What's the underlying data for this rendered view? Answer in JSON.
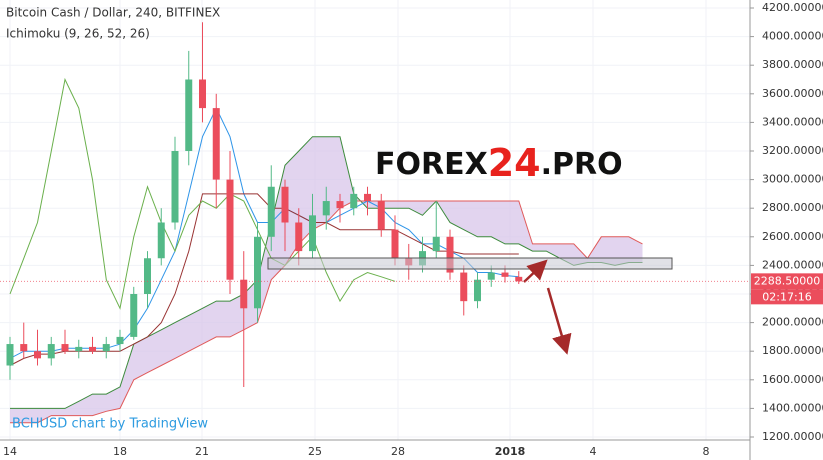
{
  "chart_data": {
    "type": "candlestick",
    "title": "Bitcoin Cash / Dollar, 240, BITFINEX",
    "indicator": "Ichimoku (9, 26, 52, 26)",
    "credit": "BCHUSD chart by TradingView",
    "watermark": [
      "FOREX",
      "24",
      ".PRO"
    ],
    "x_labels": [
      "14",
      "18",
      "21",
      "25",
      "28",
      "2018",
      "4",
      "8"
    ],
    "open": [
      1700,
      1850,
      1800,
      1750,
      1850,
      1800,
      1830,
      1800,
      1850,
      1900,
      2200,
      2450,
      2700,
      3200,
      3700,
      3500,
      3000,
      2300,
      2100,
      2600,
      2950,
      2700,
      2500,
      2750,
      2850,
      2800,
      2900,
      2850,
      2650,
      2450,
      2400,
      2500,
      2600,
      2350,
      2150,
      2300,
      2350,
      2320
    ],
    "high": [
      1900,
      2000,
      1950,
      1900,
      1950,
      1880,
      1900,
      1900,
      1950,
      2250,
      2500,
      2800,
      3300,
      3900,
      4100,
      3600,
      3200,
      2500,
      2700,
      3100,
      3000,
      2800,
      2900,
      2950,
      2900,
      2950,
      2950,
      2900,
      2750,
      2550,
      2600,
      2850,
      2650,
      2400,
      2350,
      2400,
      2400,
      2360
    ],
    "low": [
      1600,
      1750,
      1700,
      1700,
      1780,
      1750,
      1780,
      1750,
      1800,
      1880,
      2100,
      2400,
      2650,
      3100,
      3400,
      2800,
      2200,
      1550,
      2000,
      2500,
      2500,
      2400,
      2450,
      2650,
      2700,
      2750,
      2750,
      2600,
      2400,
      2300,
      2350,
      2450,
      2300,
      2050,
      2100,
      2250,
      2280,
      2270
    ],
    "close": [
      1850,
      1800,
      1750,
      1850,
      1800,
      1830,
      1800,
      1850,
      1900,
      2200,
      2450,
      2700,
      3200,
      3700,
      3500,
      3000,
      2300,
      2100,
      2600,
      2950,
      2700,
      2500,
      2750,
      2850,
      2800,
      2900,
      2850,
      2650,
      2450,
      2400,
      2500,
      2600,
      2350,
      2150,
      2300,
      2350,
      2320,
      2288.5
    ],
    "up_color": "#53b987",
    "down_color": "#eb4d5c",
    "lines": [
      {
        "color": "#2f95e8",
        "values": [
          1750,
          1800,
          1800,
          1800,
          1820,
          1820,
          1820,
          1820,
          1850,
          1950,
          2100,
          2300,
          2500,
          2900,
          3300,
          3500,
          3300,
          2900,
          2700,
          2700,
          2800,
          2750,
          2700,
          2700,
          2750,
          2800,
          2850,
          2800,
          2700,
          2650,
          2550,
          2550,
          2500,
          2450,
          2350,
          2350,
          2330,
          2320,
          null,
          null,
          null,
          null,
          null,
          null,
          null,
          null,
          null
        ]
      },
      {
        "color": "#993333",
        "values": [
          1700,
          1750,
          1780,
          1780,
          1800,
          1800,
          1800,
          1800,
          1800,
          1850,
          1900,
          2000,
          2200,
          2500,
          2900,
          2900,
          2900,
          2900,
          2900,
          2800,
          2800,
          2750,
          2700,
          2700,
          2650,
          2650,
          2650,
          2650,
          2650,
          2600,
          2550,
          2500,
          2500,
          2480,
          2480,
          2480,
          2480,
          2480,
          null,
          null,
          null,
          null,
          null,
          null,
          null,
          null,
          null
        ]
      },
      {
        "color": "#6ab04c",
        "values": [
          2200,
          2450,
          2700,
          3200,
          3700,
          3500,
          3000,
          2300,
          2100,
          2600,
          2950,
          2700,
          2500,
          2750,
          2850,
          2800,
          2900,
          2850,
          2650,
          2450,
          2400,
          2500,
          2600,
          2350,
          2150,
          2300,
          2350,
          2320,
          2288.5,
          null,
          null,
          null,
          null,
          null,
          null,
          null,
          null,
          null,
          null,
          null,
          null,
          null,
          null,
          null,
          null,
          null,
          null
        ]
      }
    ],
    "span_a": {
      "color": "#3d8b3d",
      "values": [
        1400,
        1400,
        1400,
        1400,
        1400,
        1450,
        1500,
        1500,
        1550,
        1850,
        1900,
        1950,
        2000,
        2050,
        2100,
        2150,
        2150,
        2200,
        2300,
        2700,
        3100,
        3200,
        3300,
        3300,
        3300,
        2900,
        2800,
        2800,
        2800,
        2800,
        2750,
        2850,
        2700,
        2650,
        2600,
        2600,
        2550,
        2550,
        2500,
        2500,
        2450,
        2400,
        2420,
        2420,
        2400,
        2420,
        2420
      ]
    },
    "span_b": {
      "color": "#e05a5a",
      "values": [
        1300,
        1300,
        1300,
        1350,
        1350,
        1350,
        1350,
        1380,
        1400,
        1600,
        1650,
        1700,
        1750,
        1800,
        1850,
        1900,
        1900,
        1950,
        2000,
        2300,
        2400,
        2550,
        2650,
        2700,
        2800,
        2850,
        2850,
        2850,
        2850,
        2850,
        2850,
        2850,
        2850,
        2850,
        2850,
        2850,
        2850,
        2850,
        2550,
        2550,
        2550,
        2550,
        2450,
        2600,
        2600,
        2600,
        2550
      ]
    },
    "cloud_color": "#d8c5ea",
    "ylim": [
      1200,
      4200
    ],
    "yticks": [
      {
        "value": 1200,
        "label": "1200.00000"
      },
      {
        "value": 1400,
        "label": "1400.00000"
      },
      {
        "value": 1600,
        "label": "1600.00000"
      },
      {
        "value": 1800,
        "label": "1800.00000"
      },
      {
        "value": 2000,
        "label": "2000.00000"
      },
      {
        "value": 2200,
        "label": "2200.00000"
      },
      {
        "value": 2400,
        "label": "2400.00000"
      },
      {
        "value": 2600,
        "label": "2600.00000"
      },
      {
        "value": 2800,
        "label": "2800.00000"
      },
      {
        "value": 3000,
        "label": "3000.00000"
      },
      {
        "value": 3200,
        "label": "3200.00000"
      },
      {
        "value": 3400,
        "label": "3400.00000"
      },
      {
        "value": 3600,
        "label": "3600.00000"
      },
      {
        "value": 3800,
        "label": "3800.00000"
      },
      {
        "value": 4000,
        "label": "4000.00000"
      },
      {
        "value": 4200,
        "label": "4200.00000"
      }
    ],
    "grid": true,
    "last_price": 2288.5,
    "last_price_label": "2288.50000",
    "countdown": "02:17:16"
  }
}
